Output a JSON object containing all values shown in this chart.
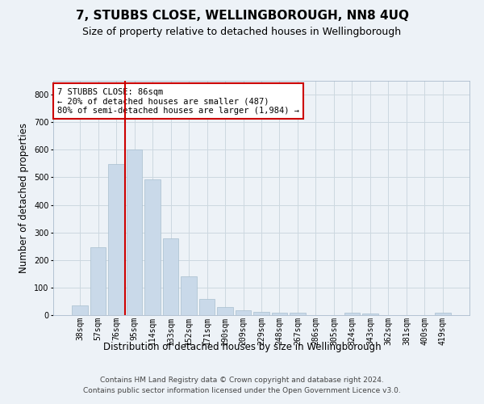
{
  "title": "7, STUBBS CLOSE, WELLINGBOROUGH, NN8 4UQ",
  "subtitle": "Size of property relative to detached houses in Wellingborough",
  "xlabel": "Distribution of detached houses by size in Wellingborough",
  "ylabel": "Number of detached properties",
  "categories": [
    "38sqm",
    "57sqm",
    "76sqm",
    "95sqm",
    "114sqm",
    "133sqm",
    "152sqm",
    "171sqm",
    "190sqm",
    "209sqm",
    "229sqm",
    "248sqm",
    "267sqm",
    "286sqm",
    "305sqm",
    "324sqm",
    "343sqm",
    "362sqm",
    "381sqm",
    "400sqm",
    "419sqm"
  ],
  "values": [
    35,
    247,
    547,
    601,
    493,
    277,
    142,
    58,
    30,
    18,
    13,
    9,
    8,
    1,
    1,
    8,
    7,
    1,
    0,
    1,
    9
  ],
  "bar_color": "#c9d9e9",
  "bar_edge_color": "#a8bfcf",
  "grid_color": "#ccd8e0",
  "background_color": "#edf2f7",
  "vline_x": 2.5,
  "vline_color": "#cc0000",
  "annotation_text": "7 STUBBS CLOSE: 86sqm\n← 20% of detached houses are smaller (487)\n80% of semi-detached houses are larger (1,984) →",
  "annotation_box_facecolor": "#ffffff",
  "annotation_box_edgecolor": "#cc0000",
  "ylim": [
    0,
    850
  ],
  "yticks": [
    0,
    100,
    200,
    300,
    400,
    500,
    600,
    700,
    800
  ],
  "footer": "Contains HM Land Registry data © Crown copyright and database right 2024.\nContains public sector information licensed under the Open Government Licence v3.0.",
  "title_fontsize": 11,
  "subtitle_fontsize": 9,
  "xlabel_fontsize": 8.5,
  "ylabel_fontsize": 8.5,
  "tick_fontsize": 7,
  "annotation_fontsize": 7.5,
  "footer_fontsize": 6.5
}
